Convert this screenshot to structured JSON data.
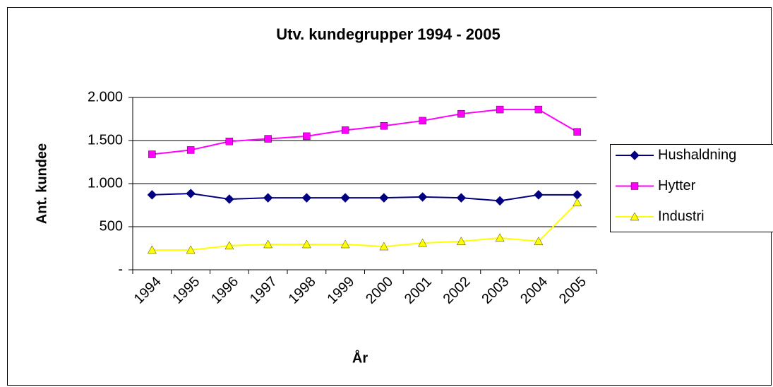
{
  "chart_data": {
    "type": "line",
    "title": "Utv. kundegrupper 1994  - 2005",
    "x_label": "År",
    "y_label": "Ant. kundee",
    "categories": [
      "1994",
      "1995",
      "1996",
      "1997",
      "1998",
      "1999",
      "2000",
      "2001",
      "2002",
      "2003",
      "2004",
      "2005"
    ],
    "series": [
      {
        "name": "Hushaldning",
        "color": "#000080",
        "marker": "diamond",
        "values": [
          870,
          885,
          820,
          835,
          835,
          835,
          835,
          845,
          835,
          800,
          870,
          870
        ]
      },
      {
        "name": "Hytter",
        "color": "#ff00ff",
        "marker": "square",
        "values": [
          1340,
          1390,
          1490,
          1520,
          1550,
          1620,
          1670,
          1730,
          1810,
          1860,
          1860,
          1600
        ]
      },
      {
        "name": "Industri",
        "color": "#ffff00",
        "marker": "triangle",
        "values": [
          230,
          230,
          280,
          295,
          295,
          295,
          270,
          310,
          330,
          370,
          330,
          780
        ]
      }
    ],
    "ylim": [
      0,
      2000
    ],
    "yticks": [
      {
        "value": 0,
        "label": "-"
      },
      500,
      {
        "value": 1000,
        "label": "1.000"
      },
      {
        "value": 1500,
        "label": "1.500"
      },
      {
        "value": 2000,
        "label": "2.000"
      }
    ],
    "grid": true,
    "legend": "right"
  }
}
